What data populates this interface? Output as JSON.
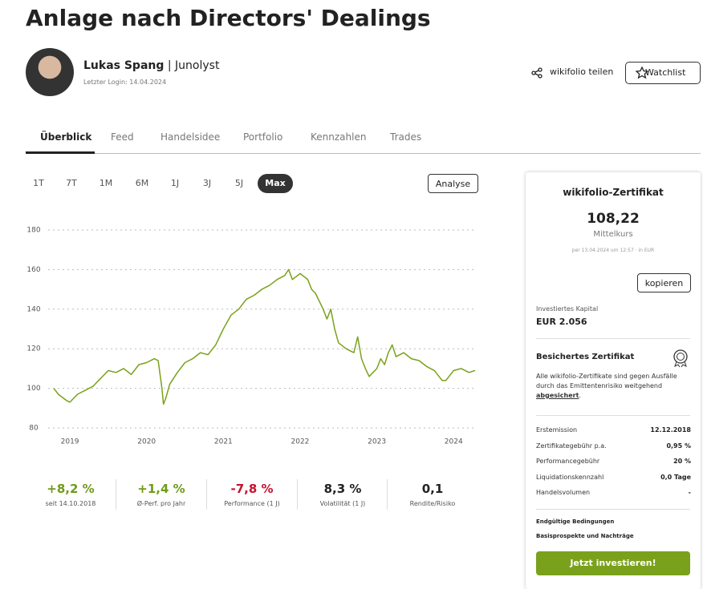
{
  "header": {
    "title": "Anlage nach Directors' Dealings",
    "author": "Lukas Spang",
    "separator": "|",
    "role": "Junolyst",
    "last_login": "Letzter Login: 14.04.2024",
    "share": "wikifolio teilen",
    "watchlist": "Watchlist"
  },
  "tabs": [
    "Überblick",
    "Feed",
    "Handelsidee",
    "Portfolio",
    "Kennzahlen",
    "Trades"
  ],
  "ranges": [
    "1T",
    "7T",
    "1M",
    "6M",
    "1J",
    "3J",
    "5J",
    "Max"
  ],
  "analyse": "Analyse",
  "chart_data": {
    "type": "line",
    "color": "#7aa11b",
    "grid": true,
    "x": [
      2018.79,
      2018.85,
      2018.95,
      2019.0,
      2019.1,
      2019.2,
      2019.3,
      2019.4,
      2019.5,
      2019.6,
      2019.7,
      2019.8,
      2019.9,
      2020.0,
      2020.1,
      2020.15,
      2020.2,
      2020.22,
      2020.25,
      2020.3,
      2020.4,
      2020.5,
      2020.6,
      2020.7,
      2020.8,
      2020.9,
      2021.0,
      2021.1,
      2021.2,
      2021.3,
      2021.4,
      2021.5,
      2021.6,
      2021.7,
      2021.8,
      2021.85,
      2021.9,
      2022.0,
      2022.1,
      2022.15,
      2022.2,
      2022.3,
      2022.35,
      2022.4,
      2022.45,
      2022.5,
      2022.6,
      2022.7,
      2022.75,
      2022.8,
      2022.85,
      2022.9,
      2023.0,
      2023.05,
      2023.1,
      2023.15,
      2023.2,
      2023.25,
      2023.35,
      2023.45,
      2023.55,
      2023.65,
      2023.75,
      2023.85,
      2023.9,
      2024.0,
      2024.1,
      2024.2,
      2024.28
    ],
    "values": [
      100,
      97,
      94,
      93,
      97,
      99,
      101,
      105,
      109,
      108,
      110,
      107,
      112,
      113,
      115,
      114,
      100,
      92,
      95,
      102,
      108,
      113,
      115,
      118,
      117,
      122,
      130,
      137,
      140,
      145,
      147,
      150,
      152,
      155,
      157,
      160,
      155,
      158,
      155,
      150,
      148,
      140,
      135,
      140,
      130,
      123,
      120,
      118,
      126,
      115,
      110,
      106,
      110,
      115,
      112,
      118,
      122,
      116,
      118,
      115,
      114,
      111,
      109,
      104,
      104,
      109,
      110,
      108,
      109
    ],
    "xlim": [
      2018.79,
      2024.28
    ],
    "xticks": [
      2019,
      2020,
      2021,
      2022,
      2023,
      2024
    ],
    "ylim": [
      80,
      180
    ],
    "yticks": [
      80,
      100,
      120,
      140,
      160,
      180
    ]
  },
  "stats": [
    {
      "value": "+8,2 %",
      "label": "seit 14.10.2018",
      "color": "#6f9a1a"
    },
    {
      "value": "+1,4 %",
      "label": "Ø-Perf. pro Jahr",
      "color": "#6f9a1a"
    },
    {
      "value": "-7,8 %",
      "label": "Performance (1 J)",
      "color": "#c8102e"
    },
    {
      "value": "8,3 %",
      "label": "Volatilität (1 J)",
      "color": "#222222"
    },
    {
      "value": "0,1",
      "label": "Rendite/Risiko",
      "color": "#222222"
    }
  ],
  "certificate": {
    "title": "wikifolio-Zertifikat",
    "price": "108,22",
    "price_label": "Mittelkurs",
    "timestamp": "per 13.04.2024 um 12:57 · in EUR",
    "copy": "kopieren",
    "capital_label": "Investiertes Kapital",
    "capital": "EUR 2.056",
    "secured_title": "Besichertes Zertifikat",
    "secured_text": "Alle wikifolio-Zertifikate sind gegen Ausfälle durch das Emittentenrisiko weitgehend",
    "secured_link": "abgesichert",
    "secured_end": ".",
    "rows": [
      [
        "Erstemission",
        "12.12.2018"
      ],
      [
        "Zertifikategebühr p.a.",
        "0,95 %"
      ],
      [
        "Performancegebühr",
        "20 %"
      ],
      [
        "Liquidationskennzahl",
        "0,0 Tage"
      ],
      [
        "Handelsvolumen",
        "-"
      ]
    ],
    "links": [
      "Endgültige Bedingungen",
      "Basisprospekte und Nachträge"
    ],
    "cta": "Jetzt investieren!"
  }
}
